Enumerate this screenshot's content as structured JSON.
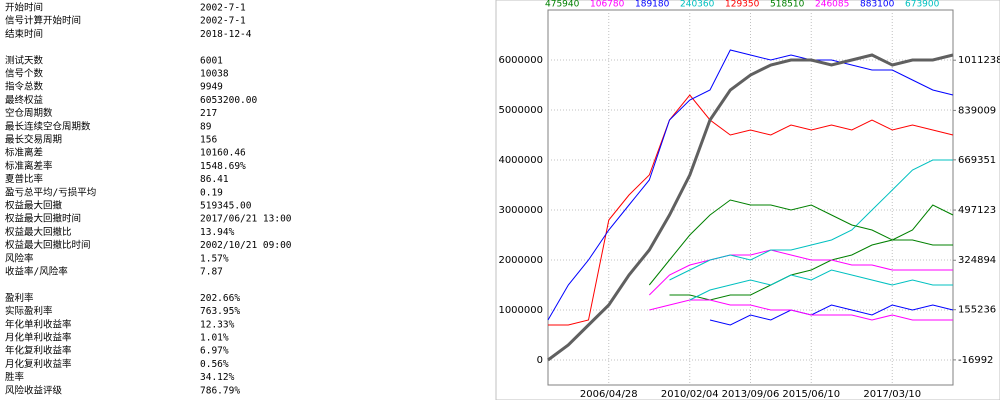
{
  "stats": [
    [
      [
        "开始时间",
        "2002-7-1"
      ],
      [
        "信号计算开始时间",
        "2002-7-1"
      ],
      [
        "结束时间",
        "2018-12-4"
      ]
    ],
    [
      [
        "测试天数",
        "6001"
      ],
      [
        "信号个数",
        "10038"
      ],
      [
        "指令总数",
        "9949"
      ],
      [
        "最终权益",
        "6053200.00"
      ],
      [
        "空仓周期数",
        "217"
      ],
      [
        "最长连续空仓周期数",
        "89"
      ],
      [
        "最长交易周期",
        "156"
      ],
      [
        "标准离差",
        "10160.46"
      ],
      [
        "标准离差率",
        "1548.69%"
      ],
      [
        "夏普比率",
        "86.41"
      ],
      [
        "盈亏总平均/亏损平均",
        "0.19"
      ],
      [
        "权益最大回撤",
        "519345.00"
      ],
      [
        "权益最大回撤时间",
        "2017/06/21 13:00"
      ],
      [
        "权益最大回撤比",
        "13.94%"
      ],
      [
        "权益最大回撤比时间",
        "2002/10/21 09:00"
      ],
      [
        "风险率",
        "1.57%"
      ],
      [
        "收益率/风险率",
        "7.87"
      ]
    ],
    [
      [
        "盈利率",
        "202.66%"
      ],
      [
        "实际盈利率",
        "763.95%"
      ],
      [
        "年化单利收益率",
        "12.33%"
      ],
      [
        "月化单利收益率",
        "1.01%"
      ],
      [
        "年化复利收益率",
        "6.97%"
      ],
      [
        "月化复利收益率",
        "0.56%"
      ],
      [
        "胜率",
        "34.12%"
      ],
      [
        "风险收益评级",
        "786.79%"
      ]
    ]
  ],
  "chart_data": {
    "type": "line",
    "categories": [
      null,
      null,
      null,
      "2006/04/28",
      null,
      null,
      null,
      "2010/02/04",
      null,
      null,
      "2013/09/06",
      null,
      null,
      "2015/06/10",
      null,
      null,
      null,
      "2017/03/10",
      null,
      null,
      null
    ],
    "ylim": [
      -500000,
      7000000
    ],
    "yticks": [
      0,
      1000000,
      2000000,
      3000000,
      4000000,
      5000000,
      6000000
    ],
    "y2lim": [
      -103107,
      1183467
    ],
    "y2ticks": [
      -16992,
      155236,
      324894,
      497123,
      669351,
      839009,
      1011238
    ],
    "grid": true,
    "series": [
      {
        "color": "#606060",
        "values": [
          0,
          300000,
          700000,
          1100000,
          1700000,
          2200000,
          2900000,
          3700000,
          4800000,
          5400000,
          5700000,
          5900000,
          6000000,
          6000000,
          5900000,
          6000000,
          6100000,
          5900000,
          6000000,
          6000000,
          6100000
        ]
      },
      {
        "name": "475940",
        "color": "#008000",
        "values": [
          null,
          null,
          null,
          null,
          null,
          null,
          1300000,
          1300000,
          1200000,
          1300000,
          1300000,
          1500000,
          1700000,
          1800000,
          2000000,
          2100000,
          2300000,
          2400000,
          2600000,
          3100000,
          2900000
        ]
      },
      {
        "name": "106780",
        "color": "#ff00ff",
        "values": [
          null,
          null,
          null,
          null,
          null,
          1300000,
          1700000,
          1900000,
          2000000,
          2100000,
          2100000,
          2200000,
          2100000,
          2000000,
          2000000,
          1900000,
          1900000,
          1800000,
          1800000,
          1800000,
          1800000
        ]
      },
      {
        "name": "189180",
        "color": "#0000ff",
        "values": [
          null,
          null,
          null,
          null,
          null,
          null,
          null,
          null,
          800000,
          700000,
          900000,
          800000,
          1000000,
          900000,
          1100000,
          1000000,
          900000,
          1100000,
          1000000,
          1100000,
          1000000
        ]
      },
      {
        "name": "240360",
        "color": "#00c0c0",
        "values": [
          null,
          null,
          null,
          null,
          null,
          null,
          1600000,
          1800000,
          2000000,
          2100000,
          2000000,
          2200000,
          2200000,
          2300000,
          2400000,
          2600000,
          3000000,
          3400000,
          3800000,
          4000000,
          4000000
        ]
      },
      {
        "name": "129350",
        "color": "#ff0000",
        "values": [
          700000,
          700000,
          800000,
          2800000,
          3300000,
          3700000,
          4800000,
          5300000,
          4800000,
          4500000,
          4600000,
          4500000,
          4700000,
          4600000,
          4700000,
          4600000,
          4800000,
          4600000,
          4700000,
          4600000,
          4500000
        ]
      },
      {
        "name": "518510",
        "color": "#008000",
        "values": [
          null,
          null,
          null,
          null,
          null,
          1500000,
          2000000,
          2500000,
          2900000,
          3200000,
          3100000,
          3100000,
          3000000,
          3100000,
          2900000,
          2700000,
          2600000,
          2400000,
          2400000,
          2300000,
          2300000
        ]
      },
      {
        "name": "246085",
        "color": "#ff00ff",
        "values": [
          null,
          null,
          null,
          null,
          null,
          1000000,
          1100000,
          1200000,
          1200000,
          1100000,
          1100000,
          1000000,
          1000000,
          900000,
          900000,
          900000,
          800000,
          900000,
          800000,
          800000,
          800000
        ]
      },
      {
        "name": "883100",
        "color": "#0000ff",
        "values": [
          800000,
          1500000,
          2000000,
          2600000,
          3100000,
          3600000,
          4800000,
          5200000,
          5400000,
          6200000,
          6100000,
          6000000,
          6100000,
          6000000,
          6000000,
          5900000,
          5800000,
          5800000,
          5600000,
          5400000,
          5300000
        ]
      },
      {
        "name": "673900",
        "color": "#00c0c0",
        "values": [
          null,
          null,
          null,
          null,
          null,
          null,
          null,
          1200000,
          1400000,
          1500000,
          1600000,
          1500000,
          1700000,
          1600000,
          1800000,
          1700000,
          1600000,
          1500000,
          1600000,
          1500000,
          1500000
        ]
      }
    ]
  }
}
